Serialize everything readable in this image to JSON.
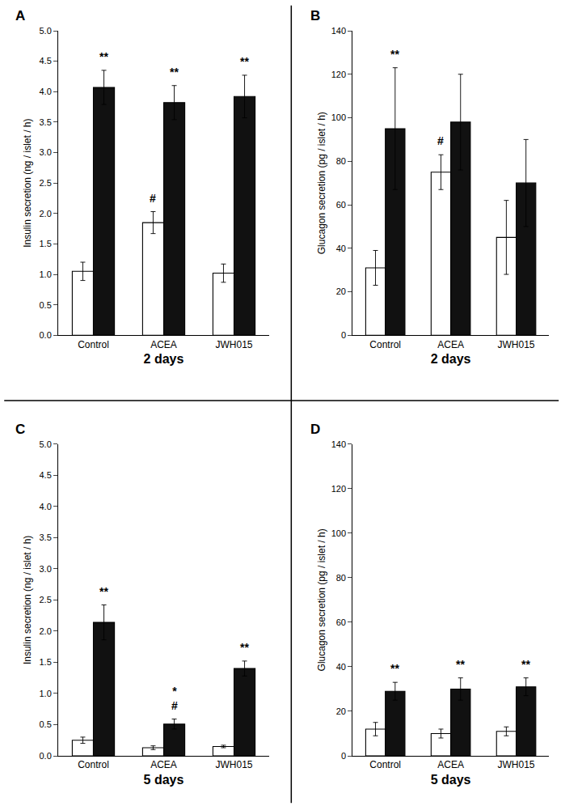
{
  "chart_data": [
    {
      "type": "bar",
      "title": "A",
      "xlabel": "2 days",
      "ylabel": "Insulin secretion (ng / islet / h)",
      "categories": [
        "Control",
        "ACEA",
        "JWH015"
      ],
      "series": [
        {
          "color": "#ffffff",
          "values": [
            1.05,
            1.85,
            1.02
          ],
          "errors": [
            0.15,
            0.18,
            0.15
          ],
          "annotations": [
            null,
            "#",
            null
          ]
        },
        {
          "color": "#111111",
          "values": [
            4.07,
            3.82,
            3.92
          ],
          "errors": [
            0.28,
            0.28,
            0.35
          ],
          "annotations": [
            "**",
            "**",
            "**"
          ]
        }
      ],
      "ylim": [
        0,
        5.0
      ],
      "yticks": [
        {
          "value": 0,
          "label": "0.0"
        },
        0.5,
        {
          "value": 1.0,
          "label": "1.0"
        },
        1.5,
        {
          "value": 2.0,
          "label": "2.0"
        },
        2.5,
        {
          "value": 3.0,
          "label": "3.0"
        },
        3.5,
        {
          "value": 4.0,
          "label": "4.0"
        },
        4.5,
        {
          "value": 5.0,
          "label": "5.0"
        }
      ],
      "grid": false
    },
    {
      "type": "bar",
      "title": "B",
      "xlabel": "2 days",
      "ylabel": "Glucagon secretion (pg / islet / h)",
      "categories": [
        "Control",
        "ACEA",
        "JWH015"
      ],
      "series": [
        {
          "color": "#ffffff",
          "values": [
            31,
            75,
            45
          ],
          "errors": [
            8,
            8,
            17
          ],
          "annotations": [
            null,
            "#",
            null
          ]
        },
        {
          "color": "#111111",
          "values": [
            95,
            98,
            70
          ],
          "errors": [
            28,
            22,
            20
          ],
          "annotations": [
            "**",
            null,
            null
          ]
        }
      ],
      "ylim": [
        0,
        140
      ],
      "yticks": [
        0,
        20,
        40,
        60,
        80,
        100,
        120,
        140
      ],
      "grid": false
    },
    {
      "type": "bar",
      "title": "C",
      "xlabel": "5 days",
      "ylabel": "Insulin secretion (ng / islet / h)",
      "categories": [
        "Control",
        "ACEA",
        "JWH015"
      ],
      "series": [
        {
          "color": "#ffffff",
          "values": [
            0.25,
            0.13,
            0.15
          ],
          "errors": [
            0.05,
            0.03,
            0.02
          ],
          "annotations": [
            null,
            null,
            null
          ]
        },
        {
          "color": "#111111",
          "values": [
            2.14,
            0.51,
            1.4
          ],
          "errors": [
            0.28,
            0.08,
            0.12
          ],
          "annotations": [
            "**",
            [
              "#",
              "*"
            ],
            "**"
          ]
        }
      ],
      "ylim": [
        0,
        5.0
      ],
      "yticks": [
        {
          "value": 0,
          "label": "0.0"
        },
        0.5,
        {
          "value": 1.0,
          "label": "1.0"
        },
        1.5,
        {
          "value": 2.0,
          "label": "2.0"
        },
        2.5,
        {
          "value": 3.0,
          "label": "3.0"
        },
        3.5,
        {
          "value": 4.0,
          "label": "4.0"
        },
        4.5,
        {
          "value": 5.0,
          "label": "5.0"
        }
      ],
      "grid": false
    },
    {
      "type": "bar",
      "title": "D",
      "xlabel": "5 days",
      "ylabel": "Glucagon secretion (pg / islet / h)",
      "categories": [
        "Control",
        "ACEA",
        "JWH015"
      ],
      "series": [
        {
          "color": "#ffffff",
          "values": [
            12,
            10,
            11
          ],
          "errors": [
            3,
            2,
            2
          ],
          "annotations": [
            null,
            null,
            null
          ]
        },
        {
          "color": "#111111",
          "values": [
            29,
            30,
            31
          ],
          "errors": [
            4,
            5,
            4
          ],
          "annotations": [
            "**",
            "**",
            "**"
          ]
        }
      ],
      "ylim": [
        0,
        140
      ],
      "yticks": [
        0,
        20,
        40,
        60,
        80,
        100,
        120,
        140
      ],
      "grid": false
    }
  ]
}
